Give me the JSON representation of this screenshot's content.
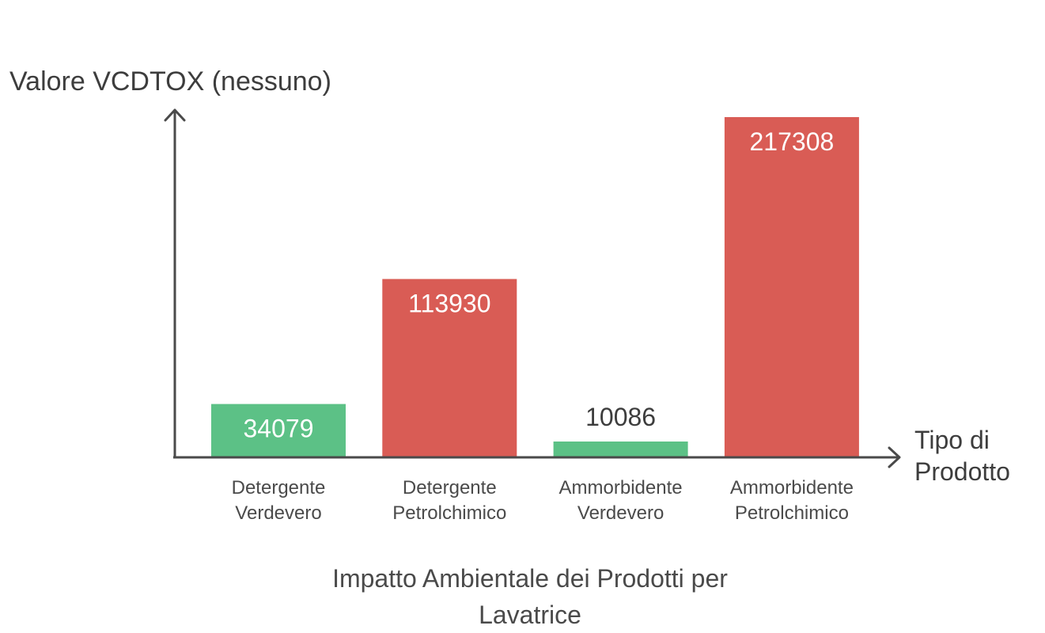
{
  "chart_data": {
    "type": "bar",
    "title": "Impatto Ambientale dei Prodotti per Lavatrice",
    "xlabel": "Tipo di Prodotto",
    "ylabel": "Valore VCDTOX (nessuno)",
    "categories": [
      [
        "Detergente",
        "Verdevero"
      ],
      [
        "Detergente",
        "Petrolchimico"
      ],
      [
        "Ammorbidente",
        "Verdevero"
      ],
      [
        "Ammorbidente",
        "Petrolchimico"
      ]
    ],
    "values": [
      34079,
      113930,
      10086,
      217308
    ],
    "value_labels": [
      "34079",
      "113930",
      "10086",
      "217308"
    ],
    "colors": [
      "#5cc186",
      "#d95c55",
      "#5cc186",
      "#d95c55"
    ],
    "ylim": [
      0,
      217308
    ],
    "grid": false,
    "legend": "none"
  }
}
